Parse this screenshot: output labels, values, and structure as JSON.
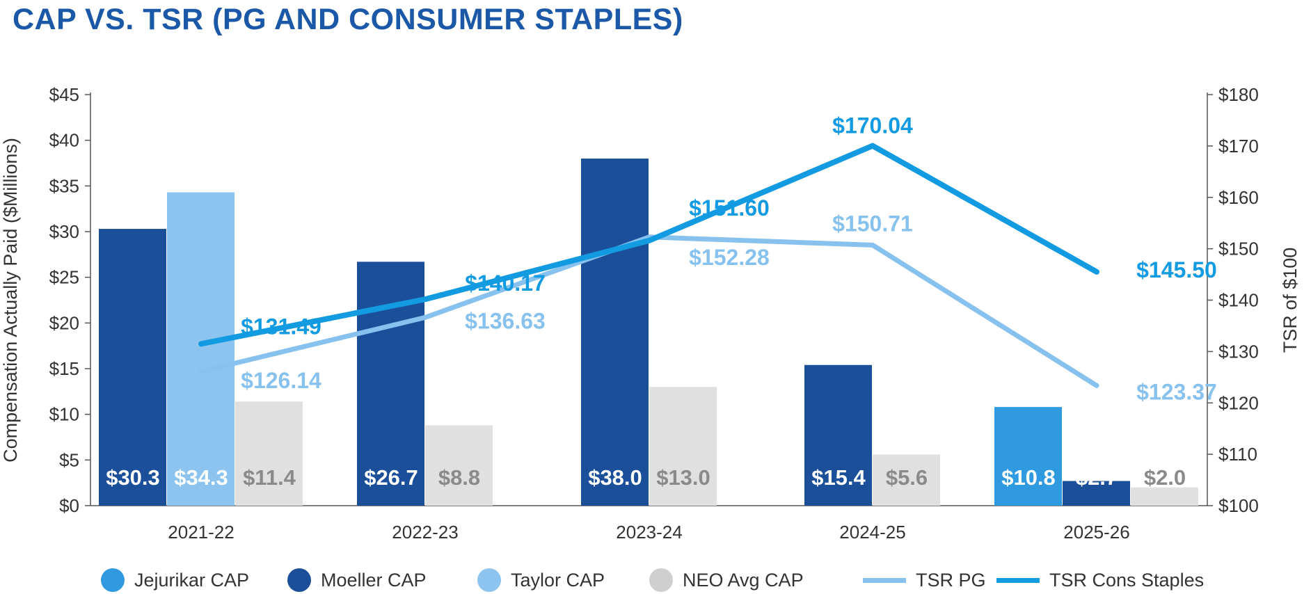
{
  "title": "CAP VS. TSR (PG AND CONSUMER STAPLES)",
  "chart_data": {
    "type": "bar",
    "categories": [
      "2021-22",
      "2022-23",
      "2023-24",
      "2024-25",
      "2025-26"
    ],
    "left_axis": {
      "label": "Compensation Actually Paid ($Millions)",
      "ylim": [
        0,
        45
      ],
      "ticks": [
        0,
        5,
        10,
        15,
        20,
        25,
        30,
        35,
        40,
        45
      ],
      "tick_labels": [
        "$0",
        "$5",
        "$10",
        "$15",
        "$20",
        "$25",
        "$30",
        "$35",
        "$40",
        "$45"
      ]
    },
    "right_axis": {
      "label": "TSR of $100",
      "ylim": [
        100,
        180
      ],
      "ticks": [
        100,
        110,
        120,
        130,
        140,
        150,
        160,
        170,
        180
      ],
      "tick_labels": [
        "$100",
        "$110",
        "$120",
        "$130",
        "$140",
        "$150",
        "$160",
        "$170",
        "$180"
      ]
    },
    "bar_series": [
      {
        "name": "Jejurikar CAP",
        "color": "#2f9ae0",
        "values": [
          null,
          null,
          null,
          null,
          10.8
        ],
        "labels": [
          "",
          "",
          "",
          "",
          "$10.8"
        ]
      },
      {
        "name": "Moeller CAP",
        "color": "#1b4f9a",
        "values": [
          30.3,
          26.7,
          38.0,
          15.4,
          2.7
        ],
        "labels": [
          "$30.3",
          "$26.7",
          "$38.0",
          "$15.4",
          "$2.7"
        ]
      },
      {
        "name": "Taylor CAP",
        "color": "#8cc4ef",
        "values": [
          34.3,
          null,
          null,
          null,
          null
        ],
        "labels": [
          "$34.3",
          "",
          "",
          "",
          ""
        ]
      },
      {
        "name": "NEO Avg CAP",
        "color": "#e0e0e0",
        "values": [
          11.4,
          8.8,
          13.0,
          5.6,
          2.0
        ],
        "labels": [
          "$11.4",
          "$8.8",
          "$13.0",
          "$5.6",
          "$2.0"
        ]
      }
    ],
    "line_series": [
      {
        "name": "TSR PG",
        "color": "#87c1ee",
        "values": [
          126.14,
          136.63,
          152.28,
          150.71,
          123.37
        ],
        "labels": [
          "$126.14",
          "$136.63",
          "$152.28",
          "$150.71",
          "$123.37"
        ]
      },
      {
        "name": "TSR Cons Staples",
        "color": "#139be2",
        "values": [
          131.49,
          140.17,
          151.6,
          170.04,
          145.5
        ],
        "labels": [
          "$131.49",
          "$140.17",
          "$151.60",
          "$170.04",
          "$145.50"
        ]
      }
    ],
    "legend": [
      {
        "label": "Jejurikar CAP",
        "kind": "dot",
        "color": "#2f9ae0"
      },
      {
        "label": "Moeller CAP",
        "kind": "dot",
        "color": "#1b4f9a"
      },
      {
        "label": "Taylor CAP",
        "kind": "dot",
        "color": "#8cc4ef"
      },
      {
        "label": "NEO Avg CAP",
        "kind": "dot",
        "color": "#cfcfcf"
      },
      {
        "label": "TSR PG",
        "kind": "line",
        "color": "#87c1ee"
      },
      {
        "label": "TSR Cons Staples",
        "kind": "line",
        "color": "#139be2"
      }
    ],
    "legend_position": "bottom",
    "grid": false
  }
}
